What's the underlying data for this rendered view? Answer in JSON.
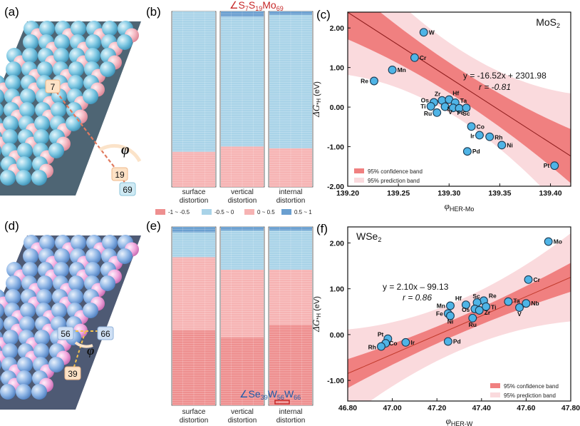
{
  "panels": {
    "a": "(a)",
    "b": "(b)",
    "c": "(c)",
    "d": "(d)",
    "e": "(e)",
    "f": "(f)"
  },
  "structure_a": {
    "labels": [
      "7",
      "19",
      "69"
    ],
    "angle_symbol": "φ"
  },
  "structure_d": {
    "labels": [
      "56",
      "66",
      "39"
    ],
    "angle_symbol": "φ"
  },
  "heatmap_b": {
    "top_label_parts": [
      "∠S",
      "7",
      "S",
      "19",
      "Mo",
      "69"
    ],
    "columns": [
      "surface\ndistortion",
      "vertical\ndistortion",
      "internal\ndistortion"
    ],
    "column_lines": [
      [
        "surface",
        "distortion"
      ],
      [
        "vertical",
        "distortion"
      ],
      [
        "internal",
        "distortion"
      ]
    ]
  },
  "heatmap_e": {
    "bottom_label_parts": [
      "∠Se",
      "39",
      "W",
      "56",
      "W",
      "66"
    ],
    "column_lines": [
      [
        "surface",
        "distortion"
      ],
      [
        "vertical",
        "distortion"
      ],
      [
        "internal",
        "distortion"
      ]
    ]
  },
  "color_legend": [
    {
      "label": "-1 ~ -0.5",
      "color": "#ee8f8f"
    },
    {
      "label": "-0.5 ~ 0",
      "color": "#a9d3e8"
    },
    {
      "label": "0 ~ 0.5",
      "color": "#f6b3b3"
    },
    {
      "label": "0.5 ~ 1",
      "color": "#6a9fd0"
    }
  ],
  "colors": {
    "point_fill": "#4fb4e6",
    "point_stroke": "#1b3a52",
    "fit_line_c": "#8b1a1a",
    "fit_line_f": "#c0392b",
    "confidence_band": "#f08080",
    "prediction_band": "#fadadd",
    "red_label": "#c62828",
    "blue_label": "#1e5aa8"
  },
  "chart_data": [
    {
      "type": "scatter",
      "panel": "c",
      "title": "MoS2",
      "title_parts": [
        "MoS",
        "2"
      ],
      "xlabel_parts": [
        "φ",
        "HER-Mo"
      ],
      "ylabel_parts": [
        "ΔG",
        "*H",
        " (eV)"
      ],
      "xlim": [
        139.2,
        139.42
      ],
      "ylim": [
        -2.0,
        2.4
      ],
      "xticks": [
        139.2,
        139.25,
        139.3,
        139.35,
        139.4
      ],
      "xtick_labels": [
        "139.20",
        "139.25",
        "139.30",
        "139.35",
        "139.40"
      ],
      "yticks": [
        -2.0,
        -1.0,
        0.0,
        1.0,
        2.0
      ],
      "ytick_labels": [
        "-2.00",
        "-1.00",
        "0.00",
        "1.00",
        "2.00"
      ],
      "equation": "y = -16.52x + 2301.98",
      "r_label": "r = -0.81",
      "slope": -16.52,
      "intercept": 2301.98,
      "legend": [
        "95% confidence band",
        "95% prediction band"
      ],
      "points": [
        {
          "label": "W",
          "x": 139.275,
          "y": 1.89
        },
        {
          "label": "Cr",
          "x": 139.266,
          "y": 1.25
        },
        {
          "label": "Mn",
          "x": 139.244,
          "y": 0.94
        },
        {
          "label": "Re",
          "x": 139.226,
          "y": 0.66
        },
        {
          "label": "Zr",
          "x": 139.293,
          "y": 0.17
        },
        {
          "label": "Hf",
          "x": 139.3,
          "y": 0.19
        },
        {
          "label": "Os",
          "x": 139.285,
          "y": 0.12
        },
        {
          "label": "Ta",
          "x": 139.306,
          "y": 0.11
        },
        {
          "label": "Ti",
          "x": 139.282,
          "y": 0.02
        },
        {
          "label": "Nb",
          "x": 139.296,
          "y": 0.01
        },
        {
          "label": "Ru",
          "x": 139.288,
          "y": -0.14
        },
        {
          "label": "V",
          "x": 139.304,
          "y": -0.02
        },
        {
          "label": "Fe",
          "x": 139.31,
          "y": -0.03
        },
        {
          "label": "Sc",
          "x": 139.317,
          "y": -0.02
        },
        {
          "label": "Co",
          "x": 139.322,
          "y": -0.49
        },
        {
          "label": "Ir",
          "x": 139.33,
          "y": -0.71
        },
        {
          "label": "Rh",
          "x": 139.34,
          "y": -0.75
        },
        {
          "label": "Ni",
          "x": 139.352,
          "y": -0.96
        },
        {
          "label": "Pd",
          "x": 139.318,
          "y": -1.12
        },
        {
          "label": "Pt",
          "x": 139.404,
          "y": -1.48
        }
      ]
    },
    {
      "type": "scatter",
      "panel": "f",
      "title": "WSe2",
      "title_parts": [
        "WSe",
        "2"
      ],
      "xlabel_parts": [
        "φ",
        "HER-W"
      ],
      "ylabel_parts": [
        "ΔG",
        "*H",
        " (eV)"
      ],
      "xlim": [
        46.8,
        47.8
      ],
      "ylim": [
        -1.45,
        2.35
      ],
      "xticks": [
        46.8,
        47.0,
        47.2,
        47.4,
        47.6,
        47.8
      ],
      "xtick_labels": [
        "46.80",
        "47.00",
        "47.20",
        "47.40",
        "47.60",
        "47.80"
      ],
      "yticks": [
        -1.0,
        0.0,
        1.0,
        2.0
      ],
      "ytick_labels": [
        "-1.00",
        "0.00",
        "1.00",
        "2.00"
      ],
      "equation": "y = 2.10x – 99.13",
      "r_label": "r = 0.86",
      "slope": 2.1,
      "intercept": -99.13,
      "legend": [
        "95% confidence band",
        "95% prediction band"
      ],
      "points": [
        {
          "label": "Mo",
          "x": 47.7,
          "y": 2.03
        },
        {
          "label": "Cr",
          "x": 47.61,
          "y": 1.2
        },
        {
          "label": "Ta",
          "x": 47.52,
          "y": 0.72
        },
        {
          "label": "Nb",
          "x": 47.6,
          "y": 0.68
        },
        {
          "label": "V",
          "x": 47.57,
          "y": 0.59
        },
        {
          "label": "Re",
          "x": 47.41,
          "y": 0.74
        },
        {
          "label": "Sc",
          "x": 47.38,
          "y": 0.7
        },
        {
          "label": "Hf",
          "x": 47.33,
          "y": 0.65
        },
        {
          "label": "Mn",
          "x": 47.26,
          "y": 0.63
        },
        {
          "label": "Ti",
          "x": 47.42,
          "y": 0.61
        },
        {
          "label": "Os",
          "x": 47.37,
          "y": 0.56
        },
        {
          "label": "Zr",
          "x": 47.39,
          "y": 0.53
        },
        {
          "label": "Fe",
          "x": 47.25,
          "y": 0.46
        },
        {
          "label": "Ni",
          "x": 47.26,
          "y": 0.41
        },
        {
          "label": "Ru",
          "x": 47.36,
          "y": 0.36
        },
        {
          "label": "Pt",
          "x": 46.98,
          "y": -0.09
        },
        {
          "label": "Ir",
          "x": 47.06,
          "y": -0.17
        },
        {
          "label": "Co",
          "x": 46.97,
          "y": -0.19
        },
        {
          "label": "Rh",
          "x": 46.95,
          "y": -0.26
        },
        {
          "label": "Pd",
          "x": 47.25,
          "y": -0.15
        }
      ]
    }
  ]
}
